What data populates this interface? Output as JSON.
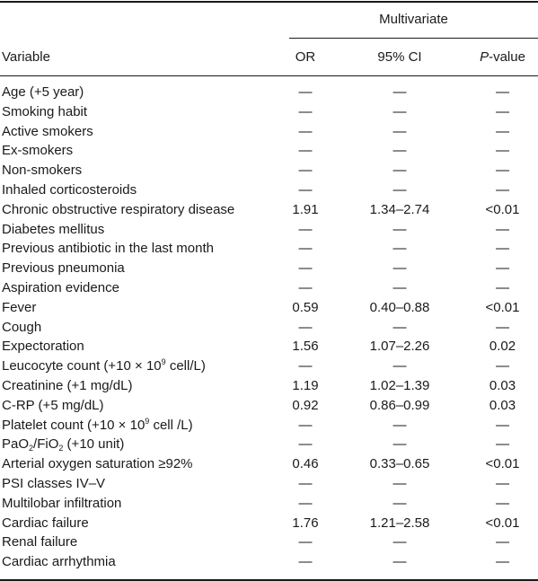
{
  "table": {
    "group_header": "Multivariate",
    "headers": {
      "variable": "Variable",
      "or": "OR",
      "ci": "95% CI",
      "p_italic": "P",
      "p_rest": "-value"
    },
    "rows": [
      {
        "variable": "Age (+5 year)",
        "or": "—",
        "ci": "—",
        "p": "—"
      },
      {
        "variable": "Smoking habit",
        "or": "—",
        "ci": "—",
        "p": "—"
      },
      {
        "variable": "Active smokers",
        "or": "—",
        "ci": "—",
        "p": "—"
      },
      {
        "variable": "Ex-smokers",
        "or": "—",
        "ci": "—",
        "p": "—"
      },
      {
        "variable": "Non-smokers",
        "or": "—",
        "ci": "—",
        "p": "—"
      },
      {
        "variable": "Inhaled corticosteroids",
        "or": "—",
        "ci": "—",
        "p": "—"
      },
      {
        "variable": "Chronic obstructive respiratory disease",
        "or": "1.91",
        "ci": "1.34–2.74",
        "p": "<0.01"
      },
      {
        "variable": "Diabetes mellitus",
        "or": "—",
        "ci": "—",
        "p": "—"
      },
      {
        "variable": "Previous antibiotic in the last month",
        "or": "—",
        "ci": "—",
        "p": "—"
      },
      {
        "variable": "Previous pneumonia",
        "or": "—",
        "ci": "—",
        "p": "—"
      },
      {
        "variable": "Aspiration evidence",
        "or": "—",
        "ci": "—",
        "p": "—"
      },
      {
        "variable": "Fever",
        "or": "0.59",
        "ci": "0.40–0.88",
        "p": "<0.01"
      },
      {
        "variable": "Cough",
        "or": "—",
        "ci": "—",
        "p": "—"
      },
      {
        "variable": "Expectoration",
        "or": "1.56",
        "ci": "1.07–2.26",
        "p": "0.02"
      },
      {
        "variable_parts": [
          "Leucocyte count (+10 × 10",
          "9",
          " cell/L)"
        ],
        "variable_format": "sup",
        "or": "—",
        "ci": "—",
        "p": "—"
      },
      {
        "variable": "Creatinine (+1 mg/dL)",
        "or": "1.19",
        "ci": "1.02–1.39",
        "p": "0.03"
      },
      {
        "variable": "C-RP (+5 mg/dL)",
        "or": "0.92",
        "ci": "0.86–0.99",
        "p": "0.03"
      },
      {
        "variable_parts": [
          "Platelet count (+10 × 10",
          "9",
          " cell /L)"
        ],
        "variable_format": "sup",
        "or": "—",
        "ci": "—",
        "p": "—"
      },
      {
        "variable_parts": [
          "PaO",
          "2",
          "/FiO",
          "2",
          " (+10 unit)"
        ],
        "variable_format": "sub",
        "or": "—",
        "ci": "—",
        "p": "—"
      },
      {
        "variable": "Arterial oxygen saturation ≥92%",
        "or": "0.46",
        "ci": "0.33–0.65",
        "p": "<0.01"
      },
      {
        "variable": "PSI classes IV–V",
        "or": "—",
        "ci": "—",
        "p": "—"
      },
      {
        "variable": "Multilobar infiltration",
        "or": "—",
        "ci": "—",
        "p": "—"
      },
      {
        "variable": "Cardiac failure",
        "or": "1.76",
        "ci": "1.21–2.58",
        "p": "<0.01"
      },
      {
        "variable": "Renal failure",
        "or": "—",
        "ci": "—",
        "p": "—"
      },
      {
        "variable": "Cardiac arrhythmia",
        "or": "—",
        "ci": "—",
        "p": "—"
      }
    ]
  }
}
